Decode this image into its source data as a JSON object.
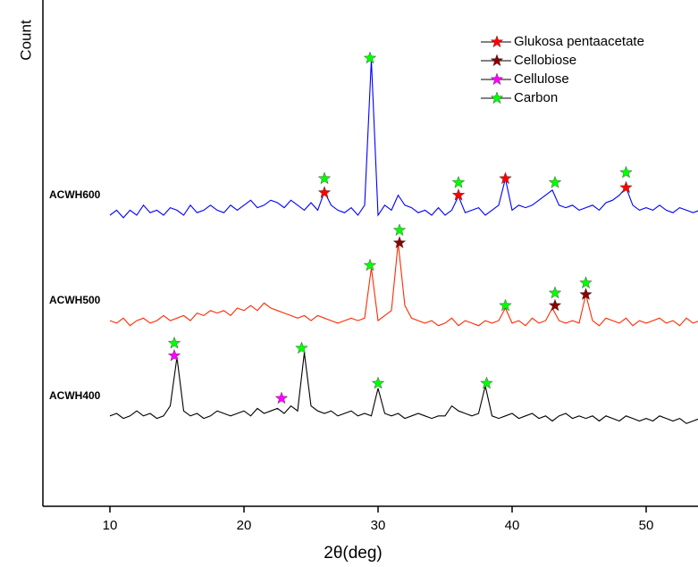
{
  "chart_data": {
    "type": "line",
    "xlabel": "2θ(deg)",
    "ylabel": "Count",
    "xlim": [
      5,
      54
    ],
    "ylim": [
      0,
      100
    ],
    "xticks": [
      10,
      20,
      30,
      40,
      50
    ],
    "x": [
      10,
      10.5,
      11,
      11.5,
      12,
      12.5,
      13,
      13.5,
      14,
      14.5,
      15,
      15.5,
      16,
      16.5,
      17,
      17.5,
      18,
      18.5,
      19,
      19.5,
      20,
      20.5,
      21,
      21.5,
      22,
      22.5,
      23,
      23.5,
      24,
      24.5,
      25,
      25.5,
      26,
      26.5,
      27,
      27.5,
      28,
      28.5,
      29,
      29.5,
      30,
      30.5,
      31,
      31.5,
      32,
      32.5,
      33,
      33.5,
      34,
      34.5,
      35,
      35.5,
      36,
      36.5,
      37,
      37.5,
      38,
      38.5,
      39,
      39.5,
      40,
      40.5,
      41,
      41.5,
      42,
      42.5,
      43,
      43.5,
      44,
      44.5,
      45,
      45.5,
      46,
      46.5,
      47,
      47.5,
      48,
      48.5,
      49,
      49.5,
      50,
      50.5,
      51,
      51.5,
      52,
      52.5,
      53,
      53.5,
      54
    ],
    "series": [
      {
        "name": "ACWH600",
        "color": "#0000ff",
        "values": [
          58,
          59,
          57.5,
          59,
          58,
          60,
          58.5,
          59,
          58,
          59.5,
          59,
          58,
          60,
          58.5,
          59,
          60,
          59,
          58.5,
          60,
          59,
          60,
          61,
          59.5,
          60,
          61,
          60.5,
          59.5,
          61,
          60,
          59,
          60.5,
          59,
          62.7,
          60,
          59,
          58.5,
          59.5,
          58,
          60,
          89,
          58,
          60,
          59,
          62,
          60,
          59.5,
          58.5,
          59,
          58,
          59.5,
          58,
          59,
          61.8,
          58.5,
          59,
          59.5,
          58,
          59,
          60,
          65.3,
          59,
          60,
          59.5,
          60,
          61,
          62,
          63,
          60,
          59.5,
          60,
          59,
          59.5,
          60,
          59,
          60.5,
          61,
          62,
          63.5,
          60,
          59,
          59.5,
          59,
          60,
          59,
          58.5,
          59.5,
          59,
          58.5,
          59
        ]
      },
      {
        "name": "ACWH500",
        "color": "#ff2a00",
        "values": [
          37,
          36.5,
          37.5,
          36,
          37,
          37.5,
          36.5,
          37,
          38,
          37,
          37.5,
          38,
          37,
          38.5,
          38,
          39,
          38.5,
          39,
          38,
          39.5,
          39,
          40,
          39,
          40.5,
          39.5,
          39,
          38.5,
          38,
          37.5,
          38,
          37,
          38,
          37.5,
          37,
          36.5,
          37,
          37.5,
          37,
          37.5,
          47.5,
          37,
          38,
          39,
          52.5,
          40,
          37.5,
          37,
          36.5,
          37,
          36,
          36.5,
          37.5,
          36,
          37,
          36.5,
          36,
          37,
          36.5,
          37,
          39.5,
          36.5,
          37,
          36,
          37.5,
          36.5,
          37,
          39.5,
          37,
          36.5,
          37,
          36.5,
          42.2,
          37,
          36,
          37.5,
          37,
          36.5,
          37.5,
          36,
          37,
          36.5,
          37,
          37.5,
          36.5,
          37,
          36,
          37.5,
          36.5,
          37
        ]
      },
      {
        "name": "ACWH400",
        "color": "#000000",
        "values": [
          18,
          18.5,
          17.5,
          18,
          19,
          18,
          18.5,
          17.5,
          18,
          20,
          29.7,
          19,
          18,
          18.5,
          17.5,
          18,
          19,
          18.5,
          18,
          18.5,
          19,
          18,
          19.5,
          18.5,
          19,
          19.5,
          18.5,
          20,
          19,
          30.6,
          20,
          19,
          18.5,
          19,
          18,
          18.5,
          19,
          18,
          18.5,
          18,
          23.5,
          18.5,
          18,
          18.5,
          17.5,
          18,
          18.5,
          18,
          17.5,
          18,
          18,
          20,
          19,
          18.5,
          18,
          18.5,
          24,
          18,
          17.5,
          18,
          18.5,
          17.5,
          18,
          18.5,
          17.5,
          18,
          17,
          18,
          18.5,
          17.5,
          18,
          17.5,
          18,
          17,
          18,
          17.5,
          17,
          18,
          17.5,
          17,
          17.5,
          17,
          18,
          17.5,
          17,
          17.5,
          16.5,
          17,
          17.5
        ]
      }
    ],
    "markers": [
      {
        "name": "Glukosa pentaacetate",
        "color": "#ff0000",
        "x": [
          26,
          36,
          39.5,
          48.5
        ],
        "values": [
          62.5,
          62,
          65.3,
          63.5
        ]
      },
      {
        "name": "Cellobiose",
        "color": "#8b0000",
        "x": [
          31.6,
          43.2,
          45.5
        ],
        "values": [
          52.5,
          40,
          42.2
        ]
      },
      {
        "name": "Cellulose",
        "color": "#ff00ff",
        "x": [
          14.8,
          22.8
        ],
        "values": [
          30,
          21.5
        ]
      },
      {
        "name": "Carbon",
        "color": "#00ff00",
        "x": [
          26,
          29.4,
          36,
          43.2,
          48.5,
          29.4,
          31.6,
          39.5,
          43.2,
          45.5,
          14.8,
          24.3,
          30,
          38.1
        ],
        "values": [
          65.3,
          89.3,
          64.5,
          64.5,
          66.5,
          48,
          55,
          40,
          42.5,
          44.5,
          32.5,
          31.5,
          24.5,
          24.5
        ]
      }
    ]
  }
}
